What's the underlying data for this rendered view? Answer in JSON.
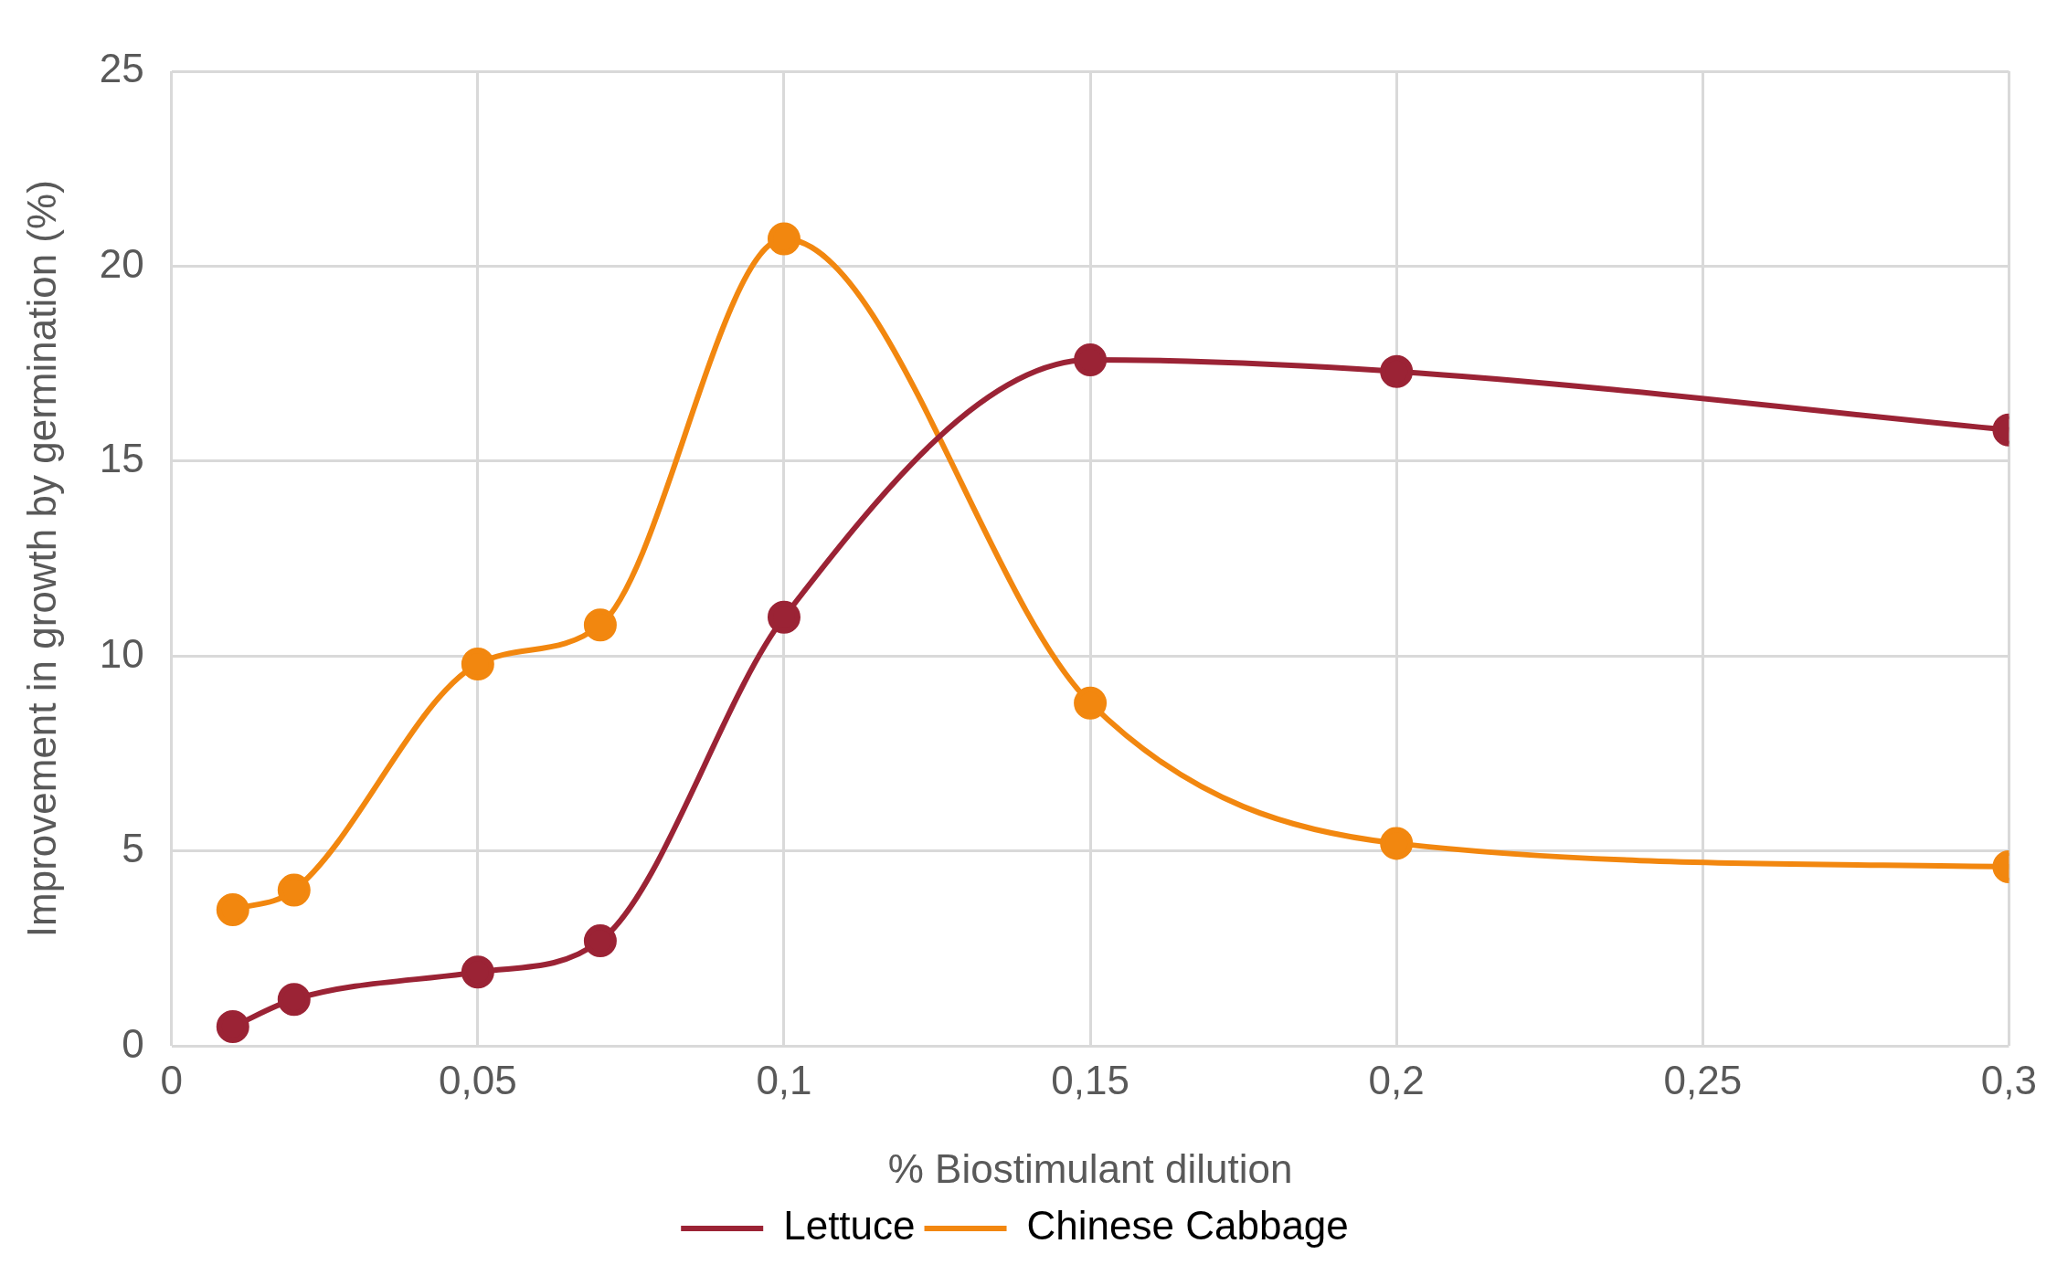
{
  "chart_data": {
    "type": "line",
    "xlabel": "% Biostimulant dilution",
    "ylabel": "Improvement in growth by germination (%)",
    "series": [
      {
        "name": "Lettuce",
        "color": "#9b2335",
        "x": [
          0.01,
          0.02,
          0.05,
          0.07,
          0.1,
          0.15,
          0.2,
          0.3
        ],
        "values": [
          0.5,
          1.2,
          1.9,
          2.7,
          11.0,
          17.6,
          17.3,
          15.8
        ]
      },
      {
        "name": "Chinese Cabbage",
        "color": "#f2870f",
        "x": [
          0.01,
          0.02,
          0.05,
          0.07,
          0.1,
          0.15,
          0.2,
          0.3
        ],
        "values": [
          3.5,
          4.0,
          9.8,
          10.8,
          20.7,
          8.8,
          5.2,
          4.6
        ]
      }
    ],
    "xlim": [
      0,
      0.3
    ],
    "xticks": [
      0,
      {
        "value": 0.05,
        "label": "0,05"
      },
      {
        "value": 0.1,
        "label": "0,1"
      },
      {
        "value": 0.15,
        "label": "0,15"
      },
      {
        "value": 0.2,
        "label": "0,2"
      },
      {
        "value": 0.25,
        "label": "0,25"
      },
      {
        "value": 0.3,
        "label": "0,3"
      }
    ],
    "ylim": [
      0,
      25
    ],
    "yticks": [
      0,
      5,
      10,
      15,
      20,
      25
    ],
    "grid": true,
    "legend": "bottom",
    "marker": "circle",
    "line_style": "solid"
  }
}
